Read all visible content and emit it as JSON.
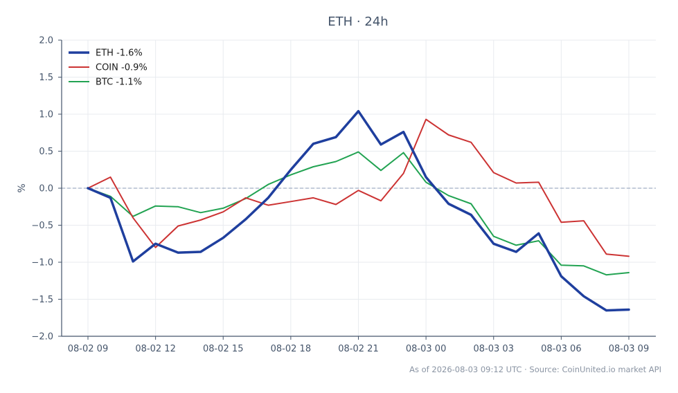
{
  "chart_data": {
    "type": "line",
    "title": "ETH · 24h",
    "ylabel": "%",
    "xlabel": "",
    "ylim": [
      -2.0,
      2.0
    ],
    "y_ticks": [
      2.0,
      1.5,
      1.0,
      0.5,
      0.0,
      -0.5,
      -1.0,
      -1.5,
      -2.0
    ],
    "y_tick_labels": [
      "2.0",
      "1.5",
      "1.0",
      "0.5",
      "0.0",
      "−0.5",
      "−1.0",
      "−1.5",
      "−2.0"
    ],
    "x_ticks": [
      "08-02 09",
      "08-02 12",
      "08-02 15",
      "08-02 18",
      "08-02 21",
      "08-03 00",
      "08-03 03",
      "08-03 06",
      "08-03 09"
    ],
    "x_hours_range": [
      0,
      24
    ],
    "grid": true,
    "zero_reference_line": 0.0,
    "legend_position": "top-left",
    "footnote": "As of 2026-08-03 09:12 UTC · Source: CoinUnited.io market API",
    "series": [
      {
        "name": "ETH -1.6%",
        "color": "#1f3f9e",
        "values": [
          0.0,
          -0.13,
          -0.99,
          -0.75,
          -0.87,
          -0.86,
          -0.67,
          -0.42,
          -0.13,
          0.25,
          0.6,
          0.69,
          1.04,
          0.59,
          0.76,
          0.15,
          -0.21,
          -0.36,
          -0.75,
          -0.86,
          -0.61,
          -1.19,
          -1.46,
          -1.65,
          -1.64
        ]
      },
      {
        "name": "COIN -0.9%",
        "color": "#cc3333",
        "values": [
          0.0,
          0.15,
          -0.4,
          -0.8,
          -0.51,
          -0.43,
          -0.32,
          -0.13,
          -0.23,
          -0.18,
          -0.13,
          -0.22,
          -0.03,
          -0.17,
          0.2,
          0.93,
          0.72,
          0.62,
          0.21,
          0.07,
          0.08,
          -0.46,
          -0.44,
          -0.89,
          -0.92
        ]
      },
      {
        "name": "BTC -1.1%",
        "color": "#22a352",
        "values": [
          0.0,
          -0.11,
          -0.38,
          -0.24,
          -0.25,
          -0.33,
          -0.27,
          -0.14,
          0.05,
          0.18,
          0.29,
          0.36,
          0.49,
          0.24,
          0.48,
          0.08,
          -0.1,
          -0.21,
          -0.65,
          -0.77,
          -0.71,
          -1.04,
          -1.05,
          -1.17,
          -1.14
        ]
      }
    ]
  }
}
